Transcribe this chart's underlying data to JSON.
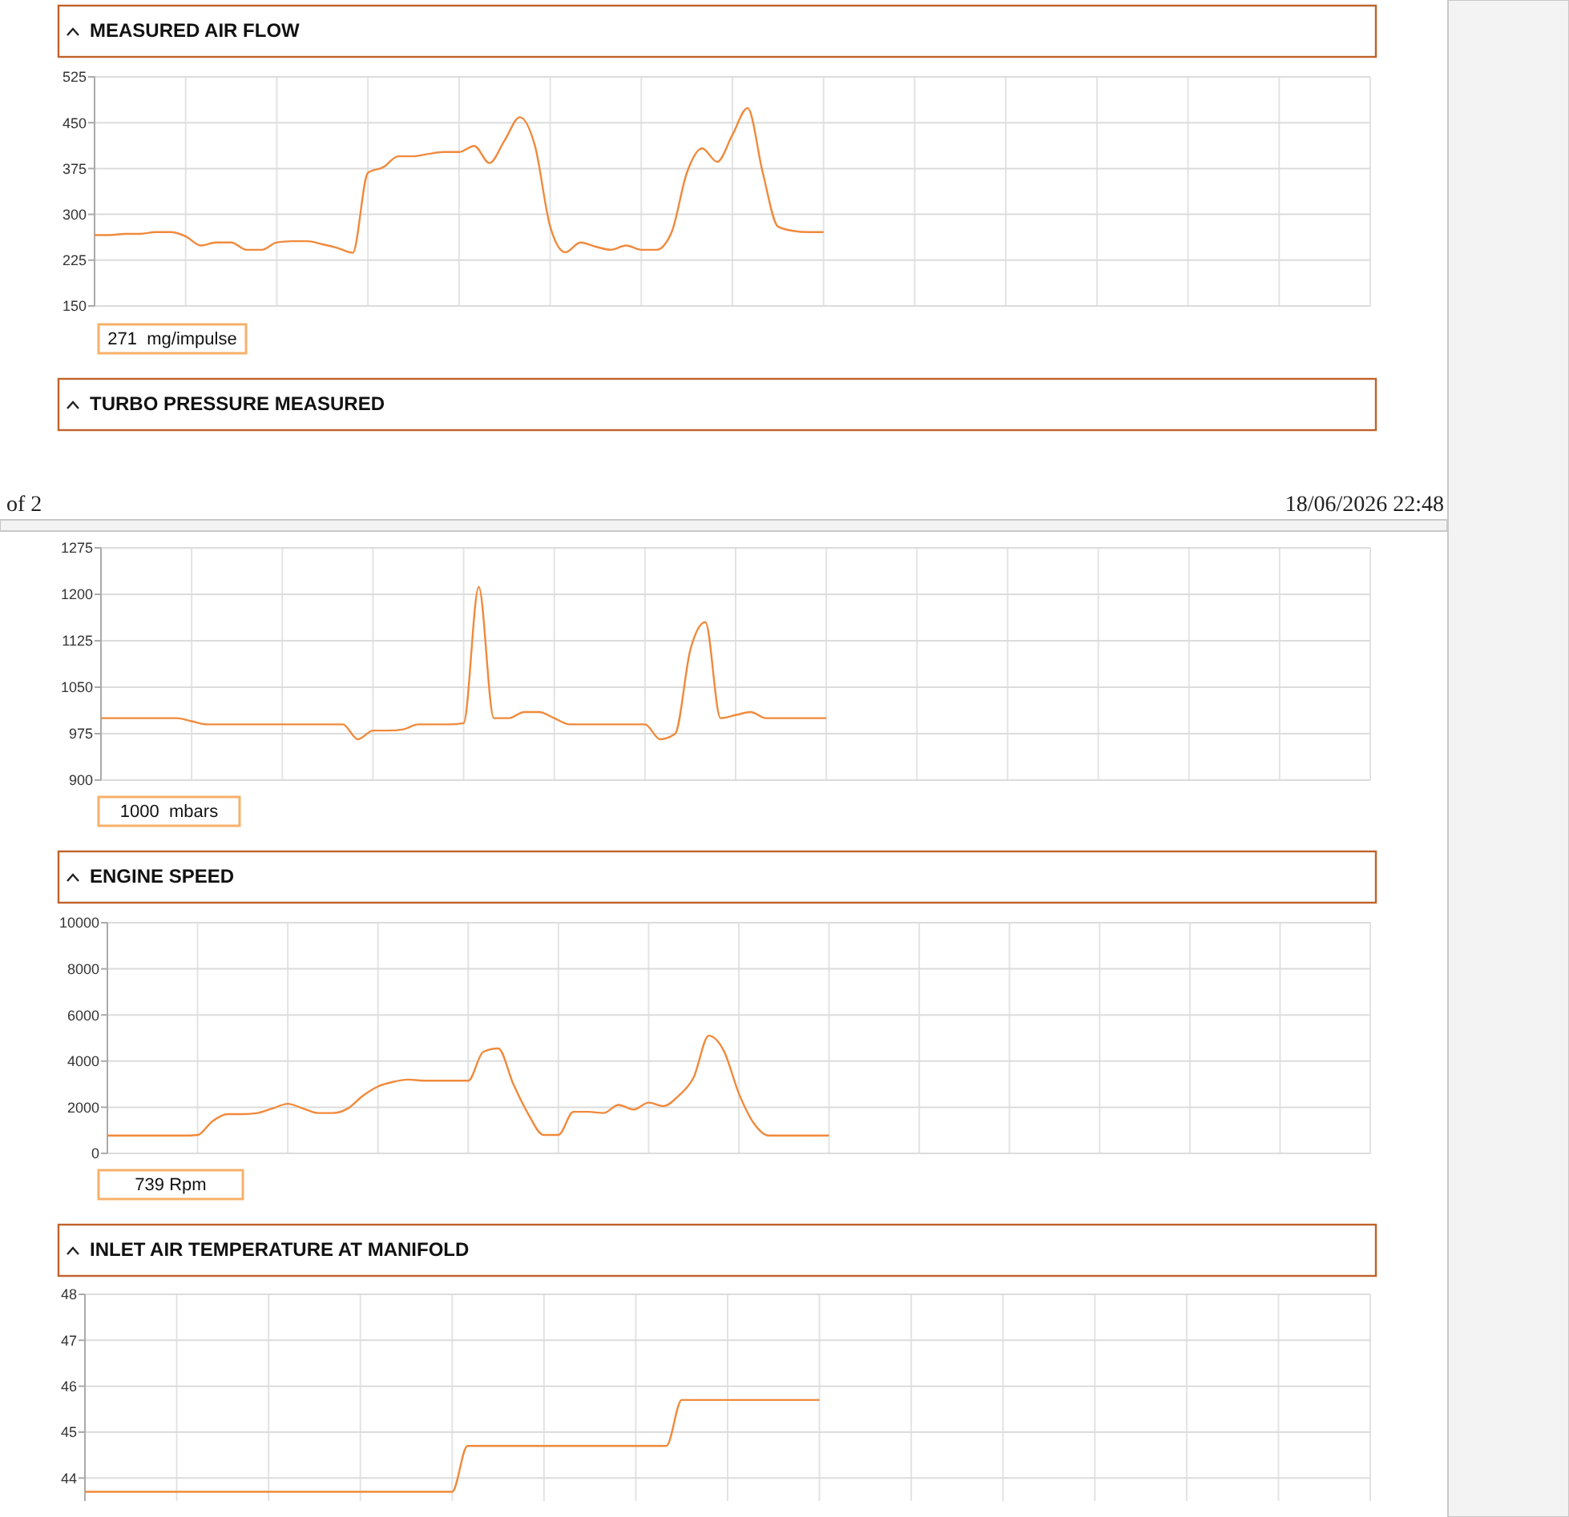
{
  "chart_data": [
    {
      "type": "line",
      "title": "MEASURED AIR FLOW",
      "categories": [
        null,
        null,
        null,
        null,
        null,
        null,
        null,
        null,
        null,
        null,
        null,
        null,
        null,
        null,
        null,
        null,
        null,
        null,
        null,
        null,
        null,
        null,
        null,
        null,
        null,
        null,
        null,
        null,
        null,
        null,
        null,
        null,
        null,
        null,
        null,
        null,
        null,
        null,
        null,
        null,
        null,
        null,
        null,
        null,
        null,
        null,
        null,
        null,
        null,
        null,
        null,
        null,
        null,
        null,
        null,
        null,
        null,
        null,
        null,
        null,
        null,
        null,
        null,
        null,
        null,
        null,
        null,
        null,
        null,
        null,
        null,
        null,
        null,
        null,
        null,
        null,
        null,
        null,
        null,
        null,
        null,
        null,
        null,
        null,
        null
      ],
      "values": [
        266,
        266,
        268,
        268,
        271,
        271,
        264,
        249,
        254,
        254,
        242,
        242,
        254,
        256,
        256,
        251,
        245,
        237,
        368,
        377,
        395,
        395,
        399,
        402,
        402,
        412,
        384,
        421,
        459,
        412,
        280,
        238,
        254,
        247,
        242,
        249,
        242,
        242,
        271,
        368,
        408,
        386,
        430,
        474,
        368,
        280,
        273,
        271,
        271,
        null,
        null,
        null,
        null,
        null,
        null,
        null,
        null,
        null,
        null,
        null,
        null,
        null,
        null,
        null,
        null,
        null,
        null,
        null,
        null,
        null,
        null,
        null,
        null,
        null,
        null,
        null,
        null,
        null,
        null,
        null,
        null,
        null,
        null,
        null,
        null
      ],
      "color": "#f08a3c",
      "ylim": [
        150,
        525
      ],
      "yticks": [
        150,
        225,
        300,
        375,
        450,
        525
      ],
      "grid": true,
      "tick_labels": "y",
      "annotations": [
        "271  mg/impulse"
      ]
    },
    {
      "type": "line",
      "title": "TURBO PRESSURE MEASURED",
      "categories": [
        null,
        null,
        null,
        null,
        null,
        null,
        null,
        null,
        null,
        null,
        null,
        null,
        null,
        null,
        null,
        null,
        null,
        null,
        null,
        null,
        null,
        null,
        null,
        null,
        null,
        null,
        null,
        null,
        null,
        null,
        null,
        null,
        null,
        null,
        null,
        null,
        null,
        null,
        null,
        null,
        null,
        null,
        null,
        null,
        null,
        null,
        null,
        null,
        null,
        null,
        null,
        null,
        null,
        null,
        null,
        null,
        null,
        null,
        null,
        null,
        null,
        null,
        null,
        null,
        null,
        null,
        null,
        null,
        null,
        null,
        null,
        null,
        null,
        null,
        null,
        null,
        null,
        null,
        null,
        null,
        null,
        null,
        null,
        null,
        null
      ],
      "values": [
        1000,
        1000,
        1000,
        1000,
        1000,
        1000,
        995,
        990,
        990,
        990,
        990,
        990,
        990,
        990,
        990,
        990,
        990,
        966,
        980,
        980,
        982,
        990,
        990,
        990,
        992,
        1212,
        1000,
        1000,
        1010,
        1010,
        1000,
        990,
        990,
        990,
        990,
        990,
        990,
        966,
        975,
        1110,
        1155,
        1000,
        1005,
        1010,
        1000,
        1000,
        1000,
        1000,
        1000,
        null,
        null,
        null,
        null,
        null,
        null,
        null,
        null,
        null,
        null,
        null,
        null,
        null,
        null,
        null,
        null,
        null,
        null,
        null,
        null,
        null,
        null,
        null,
        null,
        null,
        null,
        null,
        null,
        null,
        null,
        null,
        null,
        null,
        null,
        null,
        null
      ],
      "color": "#f08a3c",
      "ylim": [
        900,
        1275
      ],
      "yticks": [
        900,
        975,
        1050,
        1125,
        1200,
        1275
      ],
      "grid": true,
      "tick_labels": "y",
      "annotations": [
        "1000  mbars",
        "of 2",
        "18/06/2026 22:48"
      ]
    },
    {
      "type": "line",
      "title": "ENGINE SPEED",
      "categories": [
        null,
        null,
        null,
        null,
        null,
        null,
        null,
        null,
        null,
        null,
        null,
        null,
        null,
        null,
        null,
        null,
        null,
        null,
        null,
        null,
        null,
        null,
        null,
        null,
        null,
        null,
        null,
        null,
        null,
        null,
        null,
        null,
        null,
        null,
        null,
        null,
        null,
        null,
        null,
        null,
        null,
        null,
        null,
        null,
        null,
        null,
        null,
        null,
        null,
        null,
        null,
        null,
        null,
        null,
        null,
        null,
        null,
        null,
        null,
        null,
        null,
        null,
        null,
        null,
        null,
        null,
        null,
        null,
        null,
        null,
        null,
        null,
        null,
        null,
        null,
        null,
        null,
        null,
        null,
        null,
        null,
        null,
        null,
        null,
        null
      ],
      "values": [
        770,
        770,
        770,
        770,
        770,
        770,
        800,
        1400,
        1700,
        1700,
        1750,
        1950,
        2150,
        1950,
        1750,
        1750,
        1950,
        2500,
        2900,
        3100,
        3200,
        3150,
        3150,
        3150,
        3150,
        4400,
        4550,
        3000,
        1700,
        800,
        800,
        1800,
        1800,
        1750,
        2100,
        1900,
        2200,
        2050,
        2500,
        3300,
        5100,
        4450,
        2600,
        1300,
        770,
        770,
        770,
        770,
        770,
        null,
        null,
        null,
        null,
        null,
        null,
        null,
        null,
        null,
        null,
        null,
        null,
        null,
        null,
        null,
        null,
        null,
        null,
        null,
        null,
        null,
        null,
        null,
        null,
        null,
        null,
        null,
        null,
        null,
        null,
        null,
        null,
        null,
        null,
        null,
        null
      ],
      "color": "#f08a3c",
      "ylim": [
        0,
        10000
      ],
      "yticks": [
        0,
        2000,
        4000,
        6000,
        8000,
        10000
      ],
      "grid": true,
      "tick_labels": "y",
      "annotations": [
        "739 Rpm"
      ]
    },
    {
      "type": "line",
      "title": "INLET AIR TEMPERATURE AT MANIFOLD",
      "categories": [
        null,
        null,
        null,
        null,
        null,
        null,
        null,
        null,
        null,
        null,
        null,
        null,
        null,
        null,
        null,
        null,
        null,
        null,
        null,
        null,
        null,
        null,
        null,
        null,
        null,
        null,
        null,
        null,
        null,
        null,
        null,
        null,
        null,
        null,
        null,
        null,
        null,
        null,
        null,
        null,
        null,
        null,
        null,
        null,
        null,
        null,
        null,
        null,
        null,
        null,
        null,
        null,
        null,
        null,
        null,
        null,
        null,
        null,
        null,
        null,
        null,
        null,
        null,
        null,
        null,
        null,
        null,
        null,
        null,
        null,
        null,
        null,
        null,
        null,
        null,
        null,
        null,
        null,
        null,
        null,
        null,
        null,
        null,
        null,
        null
      ],
      "values": [
        43.7,
        43.7,
        43.7,
        43.7,
        43.7,
        43.7,
        43.7,
        43.7,
        43.7,
        43.7,
        43.7,
        43.7,
        43.7,
        43.7,
        43.7,
        43.7,
        43.7,
        43.7,
        43.7,
        43.7,
        43.7,
        43.7,
        43.7,
        43.7,
        43.7,
        44.7,
        44.7,
        44.7,
        44.7,
        44.7,
        44.7,
        44.7,
        44.7,
        44.7,
        44.7,
        44.7,
        44.7,
        44.7,
        44.7,
        45.7,
        45.7,
        45.7,
        45.7,
        45.7,
        45.7,
        45.7,
        45.7,
        45.7,
        45.7,
        null,
        null,
        null,
        null,
        null,
        null,
        null,
        null,
        null,
        null,
        null,
        null,
        null,
        null,
        null,
        null,
        null,
        null,
        null,
        null,
        null,
        null,
        null,
        null,
        null,
        null,
        null,
        null,
        null,
        null,
        null,
        null,
        null,
        null,
        null,
        null
      ],
      "color": "#f08a3c",
      "ylim": [
        43.5,
        48
      ],
      "yticks": [
        44,
        45,
        46,
        47,
        48
      ],
      "grid": true,
      "tick_labels": "y"
    }
  ]
}
